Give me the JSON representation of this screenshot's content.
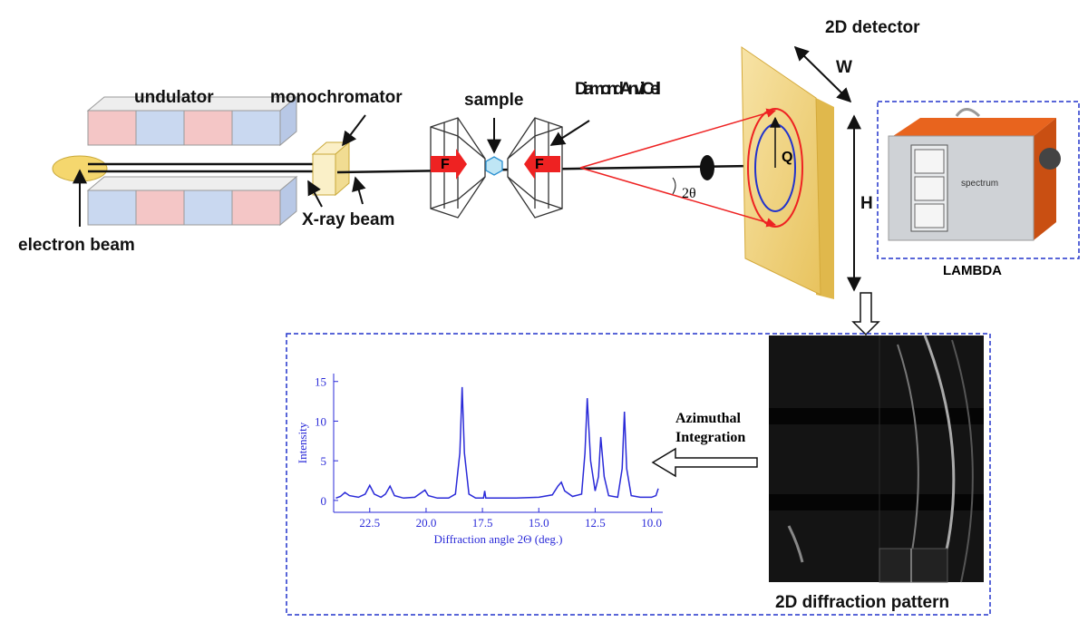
{
  "labels": {
    "undulator": "undulator",
    "monochromator": "monochromator",
    "sample": "sample",
    "dac": "Diamond Anvil Cell",
    "detector": "2D detector",
    "width": "W",
    "height": "H",
    "q": "Q",
    "angle": "2θ",
    "force_left": "F",
    "force_right": "F",
    "xray": "X-ray beam",
    "electron": "electron beam",
    "device": "LAMBDA",
    "device_logo": "spectrum",
    "integration_1": "Azimuthal",
    "integration_2": "Integration",
    "pattern": "2D diffraction pattern"
  },
  "chart_data": {
    "type": "line",
    "x_label": "Diffraction angle 2Θ (deg.)",
    "y_label": "Intensity",
    "color": "#2a2ad8",
    "x": [
      24.0,
      23.8,
      23.6,
      23.4,
      23.0,
      22.7,
      22.5,
      22.3,
      22.0,
      21.8,
      21.6,
      21.4,
      21.0,
      20.5,
      20.2,
      20.05,
      19.9,
      19.5,
      19.0,
      18.7,
      18.5,
      18.4,
      18.3,
      18.1,
      17.8,
      17.45,
      17.4,
      17.35,
      17.0,
      16.0,
      15.0,
      14.4,
      14.15,
      14.0,
      13.85,
      13.5,
      13.1,
      12.95,
      12.85,
      12.7,
      12.5,
      12.35,
      12.25,
      12.1,
      11.9,
      11.5,
      11.3,
      11.2,
      11.1,
      10.9,
      10.5,
      10.0,
      9.8,
      9.7
    ],
    "values": [
      0.3,
      0.5,
      1.0,
      0.6,
      0.4,
      0.8,
      1.9,
      0.8,
      0.4,
      0.8,
      1.8,
      0.6,
      0.3,
      0.4,
      1.0,
      1.3,
      0.6,
      0.3,
      0.3,
      0.8,
      6.0,
      14.3,
      6.0,
      0.8,
      0.3,
      0.3,
      1.2,
      0.3,
      0.3,
      0.3,
      0.4,
      0.7,
      1.8,
      2.3,
      1.2,
      0.5,
      0.8,
      6.0,
      12.9,
      5.0,
      1.2,
      3.0,
      8.0,
      3.0,
      0.6,
      0.4,
      4.0,
      11.2,
      4.0,
      0.6,
      0.4,
      0.4,
      0.6,
      1.5
    ],
    "xlim": [
      24.1,
      9.5
    ],
    "ylim": [
      -1.5,
      16
    ],
    "xticks": [
      22.5,
      {
        "value": 20,
        "label": "20.0"
      },
      17.5,
      {
        "value": 15,
        "label": "15.0"
      },
      12.5,
      {
        "value": 10,
        "label": "10.0"
      }
    ],
    "yticks": [
      0,
      5,
      10,
      15
    ]
  }
}
